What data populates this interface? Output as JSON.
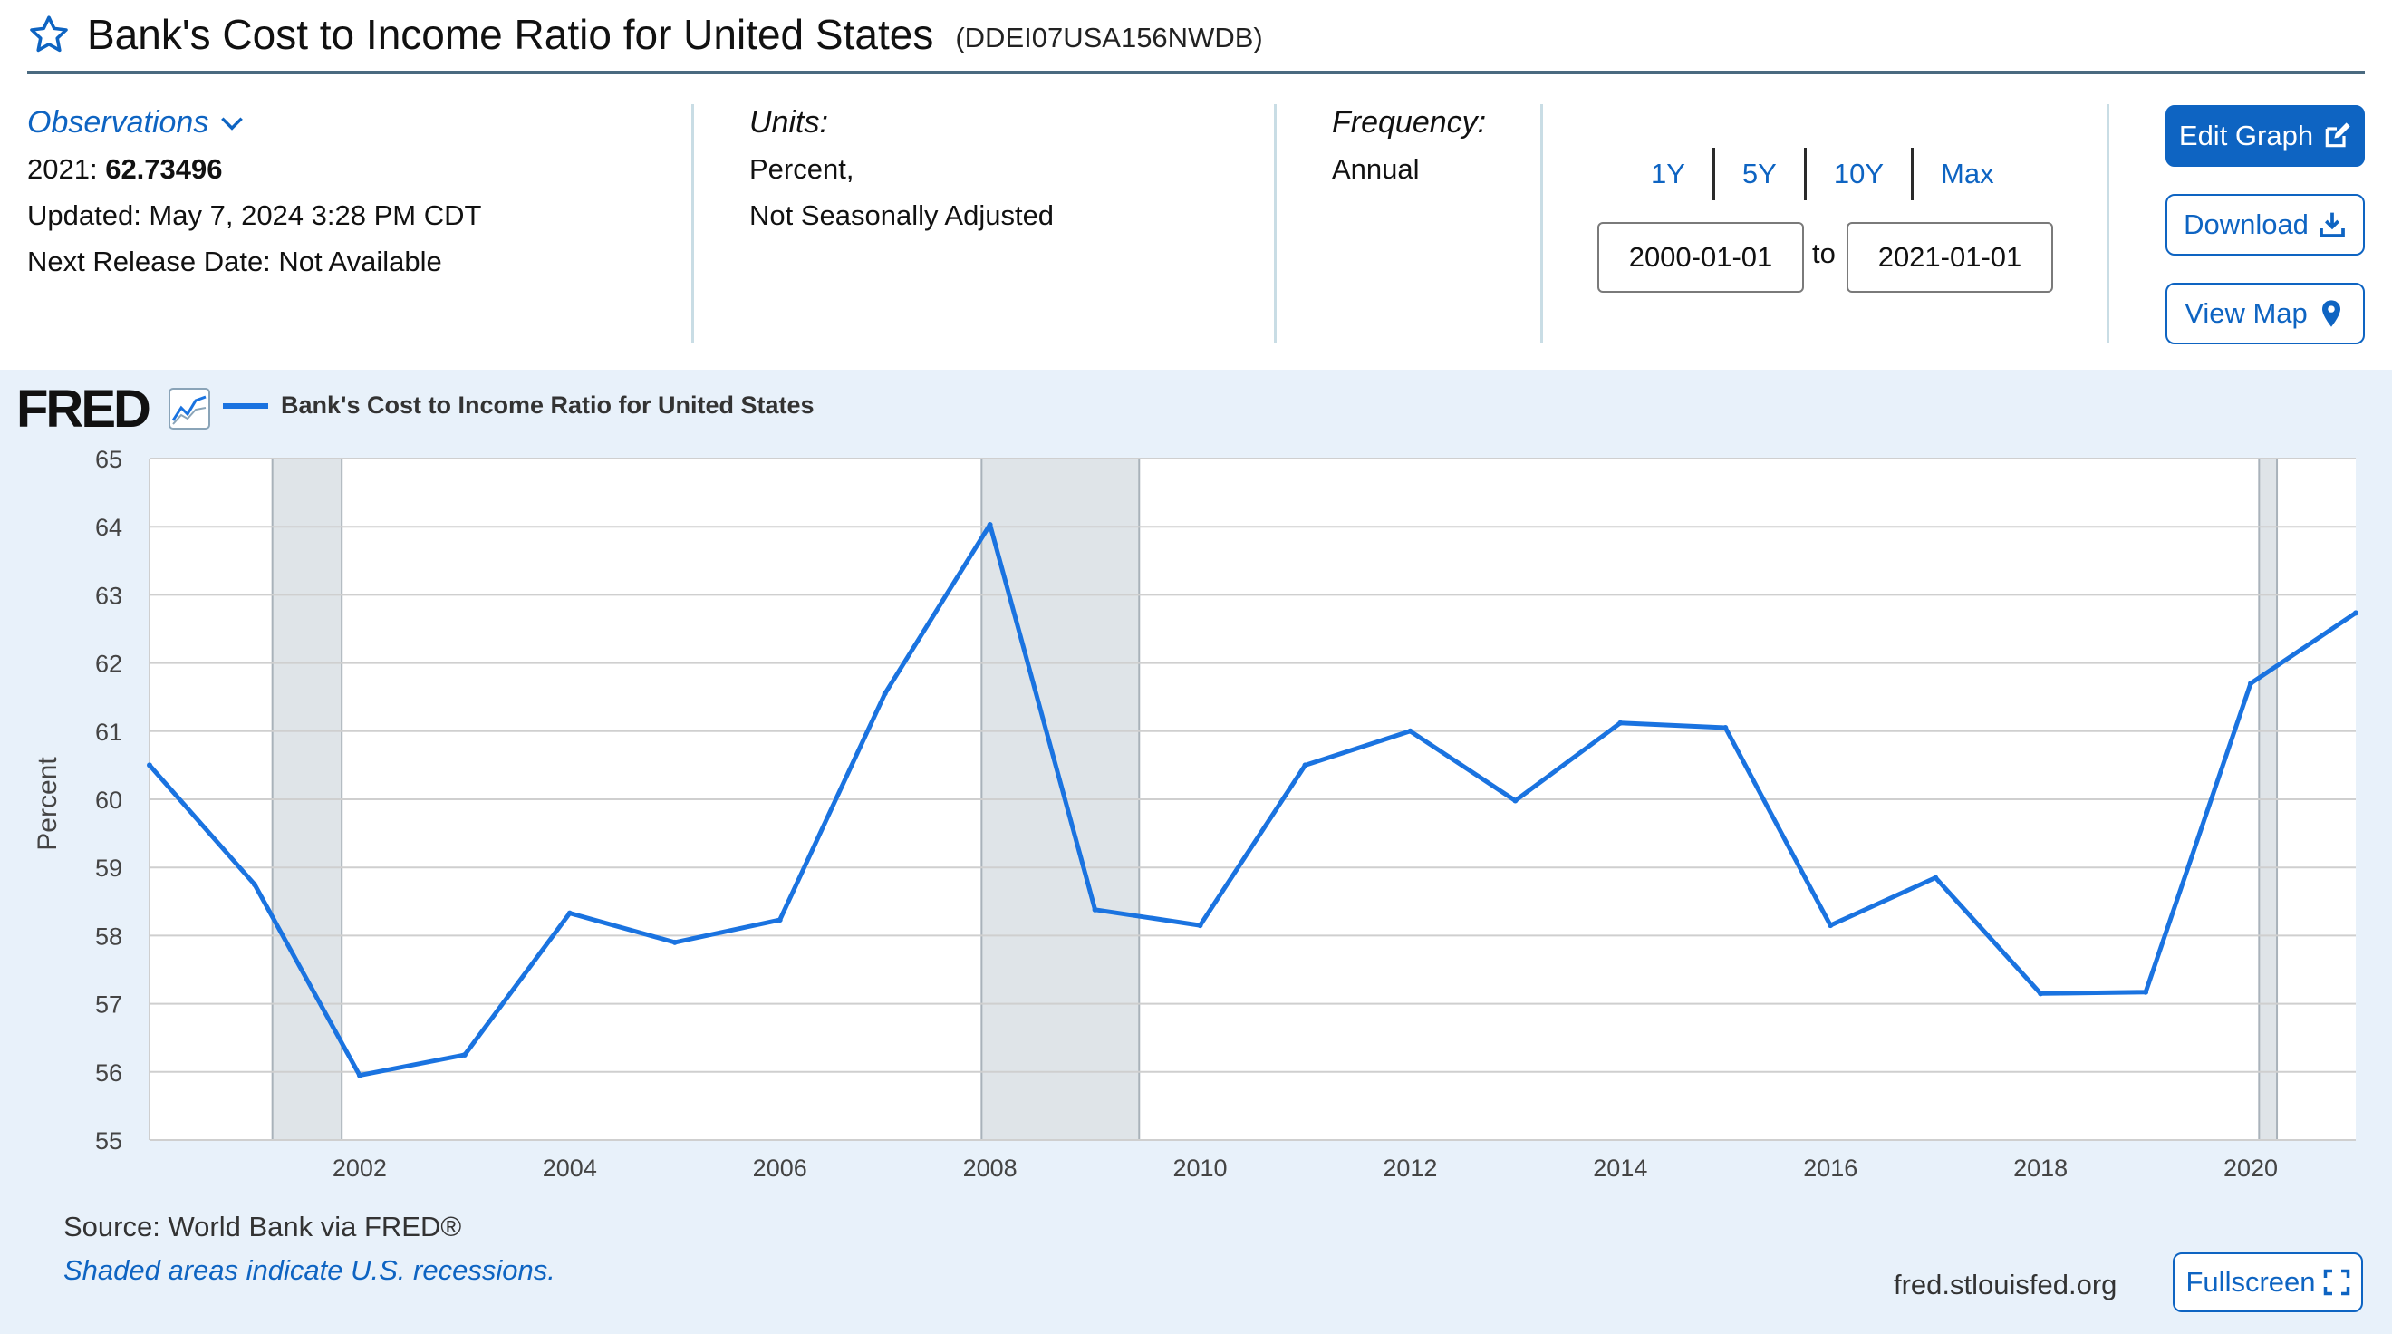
{
  "header": {
    "title": "Bank's Cost to Income Ratio for United States",
    "series_id": "(DDEI07USA156NWDB)"
  },
  "observations": {
    "link_label": "Observations",
    "latest_label": "2021:",
    "latest_value": "62.73496",
    "updated": "Updated: May 7, 2024 3:28 PM CDT",
    "next_release": "Next Release Date: Not Available"
  },
  "units": {
    "label": "Units:",
    "line1": "Percent,",
    "line2": "Not Seasonally Adjusted"
  },
  "frequency": {
    "label": "Frequency:",
    "value": "Annual"
  },
  "range": {
    "links": [
      "1Y",
      "5Y",
      "10Y",
      "Max"
    ],
    "start": "2000-01-01",
    "to_label": "to",
    "end": "2021-01-01"
  },
  "buttons": {
    "edit": "Edit Graph",
    "download": "Download",
    "map": "View Map",
    "fullscreen": "Fullscreen"
  },
  "chart_header": {
    "logo": "FRED",
    "legend": "Bank's Cost to Income Ratio for United States"
  },
  "footer": {
    "source": "Source: World Bank via FRED®",
    "recession_note": "Shaded areas indicate U.S. recessions.",
    "site": "fred.stlouisfed.org"
  },
  "colors": {
    "accent": "#0e64c2",
    "line": "#1a73e0",
    "recession": "#dfe4e8",
    "panel": "#e8f1fa"
  },
  "chart_data": {
    "type": "line",
    "title": "Bank's Cost to Income Ratio for United States",
    "ylabel": "Percent",
    "xlabel": "",
    "ylim": [
      55,
      65
    ],
    "xlim": [
      2000,
      2021
    ],
    "yticks": [
      55,
      56,
      57,
      58,
      59,
      60,
      61,
      62,
      63,
      64,
      65
    ],
    "xticks": [
      2002,
      2004,
      2006,
      2008,
      2010,
      2012,
      2014,
      2016,
      2018,
      2020
    ],
    "recessions": [
      [
        2001.17,
        2001.83
      ],
      [
        2007.92,
        2009.42
      ],
      [
        2020.08,
        2020.25
      ]
    ],
    "series": [
      {
        "name": "Bank's Cost to Income Ratio for United States",
        "x": [
          2000,
          2001,
          2002,
          2003,
          2004,
          2005,
          2006,
          2007,
          2008,
          2009,
          2010,
          2011,
          2012,
          2013,
          2014,
          2015,
          2016,
          2017,
          2018,
          2019,
          2020,
          2021
        ],
        "values": [
          60.5,
          58.75,
          55.95,
          56.25,
          58.33,
          57.9,
          58.23,
          61.55,
          64.03,
          58.38,
          58.15,
          60.5,
          61.0,
          59.98,
          61.12,
          61.05,
          58.15,
          58.85,
          57.15,
          57.17,
          61.7,
          62.73496
        ]
      }
    ]
  }
}
